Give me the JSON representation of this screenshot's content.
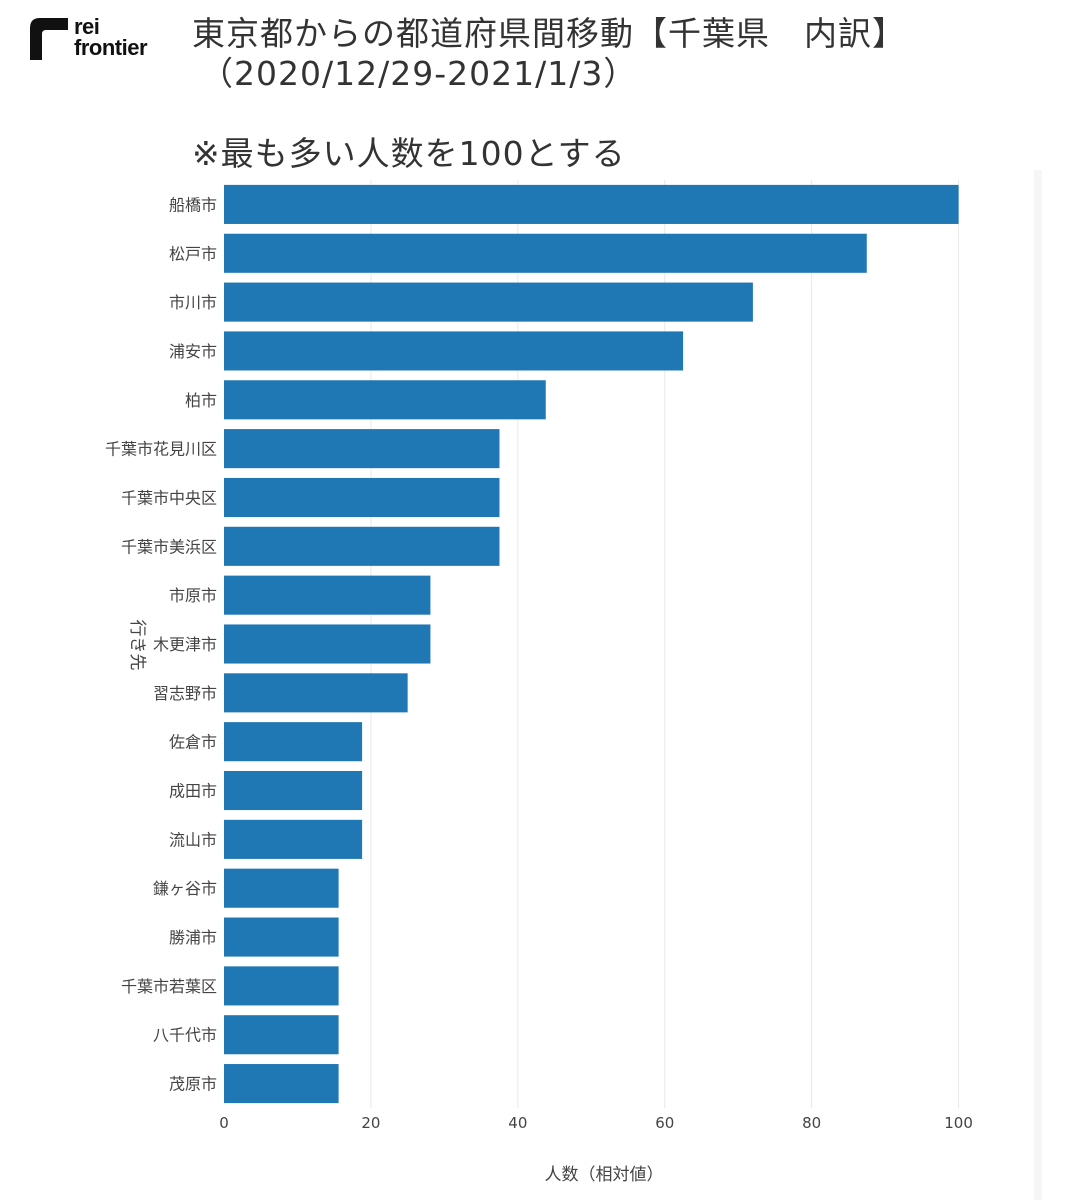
{
  "logo": {
    "line1": "rei",
    "line2": "frontier"
  },
  "header": {
    "title_line1": "東京都からの都道府県間移動【千葉県　内訳】",
    "title_line2": "（2020/12/29-2021/1/3）",
    "subtitle": "※最も多い人数を100とする"
  },
  "chart_data": {
    "type": "bar",
    "orientation": "horizontal",
    "categories": [
      "船橋市",
      "松戸市",
      "市川市",
      "浦安市",
      "柏市",
      "千葉市花見川区",
      "千葉市中央区",
      "千葉市美浜区",
      "市原市",
      "木更津市",
      "習志野市",
      "佐倉市",
      "成田市",
      "流山市",
      "鎌ヶ谷市",
      "勝浦市",
      "千葉市若葉区",
      "八千代市",
      "茂原市"
    ],
    "values": [
      100,
      87.5,
      72,
      62.5,
      43.8,
      37.5,
      37.5,
      37.5,
      28.1,
      28.1,
      25,
      18.8,
      18.8,
      18.8,
      15.6,
      15.6,
      15.6,
      15.6,
      15.6
    ],
    "xlabel": "人数（相対値）",
    "ylabel": "行き先",
    "xlim": [
      0,
      107
    ],
    "xticks": [
      "0",
      "20",
      "40",
      "60",
      "80",
      "100"
    ],
    "bar_color": "#1f77b4",
    "grid": "vertical",
    "legend": "none"
  }
}
